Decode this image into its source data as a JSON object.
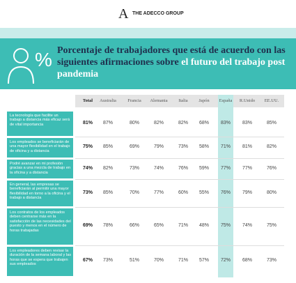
{
  "header": {
    "logo_mark": "A",
    "brand": "THE ADECCO GROUP"
  },
  "title": {
    "icon_text": "%",
    "main": "Porcentaje de trabajadores que está de acuerdo con las siguientes afirmaciones sobre",
    "highlight": "el futuro del trabajo post pandemia"
  },
  "table": {
    "columns": [
      "Total",
      "Australia",
      "Francia",
      "Alemania",
      "Italia",
      "Japón",
      "España",
      "R.Unido",
      "EE.UU."
    ],
    "rows": [
      {
        "label": "La tecnología que facilite un trabajo a distancia más eficaz será de vital importancia",
        "values": [
          "81%",
          "87%",
          "80%",
          "82%",
          "82%",
          "68%",
          "83%",
          "83%",
          "85%"
        ]
      },
      {
        "label": "Los empleados se beneficiarán de una mayor flexibilidad en el trabajo de oficina y a distancia",
        "values": [
          "75%",
          "85%",
          "69%",
          "79%",
          "73%",
          "58%",
          "71%",
          "81%",
          "82%"
        ]
      },
      {
        "label": "Podré avanzar en mi profesión gracias a una mezcla de trabajo en la oficina y a distancia",
        "values": [
          "74%",
          "82%",
          "73%",
          "74%",
          "76%",
          "59%",
          "77%",
          "77%",
          "76%"
        ]
      },
      {
        "label": "En general, las empresas se beneficiarán al permitir una mayor flexibilidad en torno a la oficina y el trabajo a distancia",
        "values": [
          "73%",
          "85%",
          "70%",
          "77%",
          "60%",
          "55%",
          "76%",
          "79%",
          "80%"
        ]
      },
      {
        "label": "Los contratos de los empleados deben centrarse más en la satisfacción de las necesidades del puesto y menos en el número de horas trabajadas",
        "values": [
          "69%",
          "78%",
          "66%",
          "65%",
          "71%",
          "48%",
          "75%",
          "74%",
          "75%"
        ]
      },
      {
        "label": "Los empleadores deben revisar la duración de la semana laboral y las horas que se espera que trabajen sus empleados",
        "values": [
          "67%",
          "73%",
          "51%",
          "70%",
          "71%",
          "57%",
          "72%",
          "68%",
          "73%"
        ]
      }
    ]
  }
}
